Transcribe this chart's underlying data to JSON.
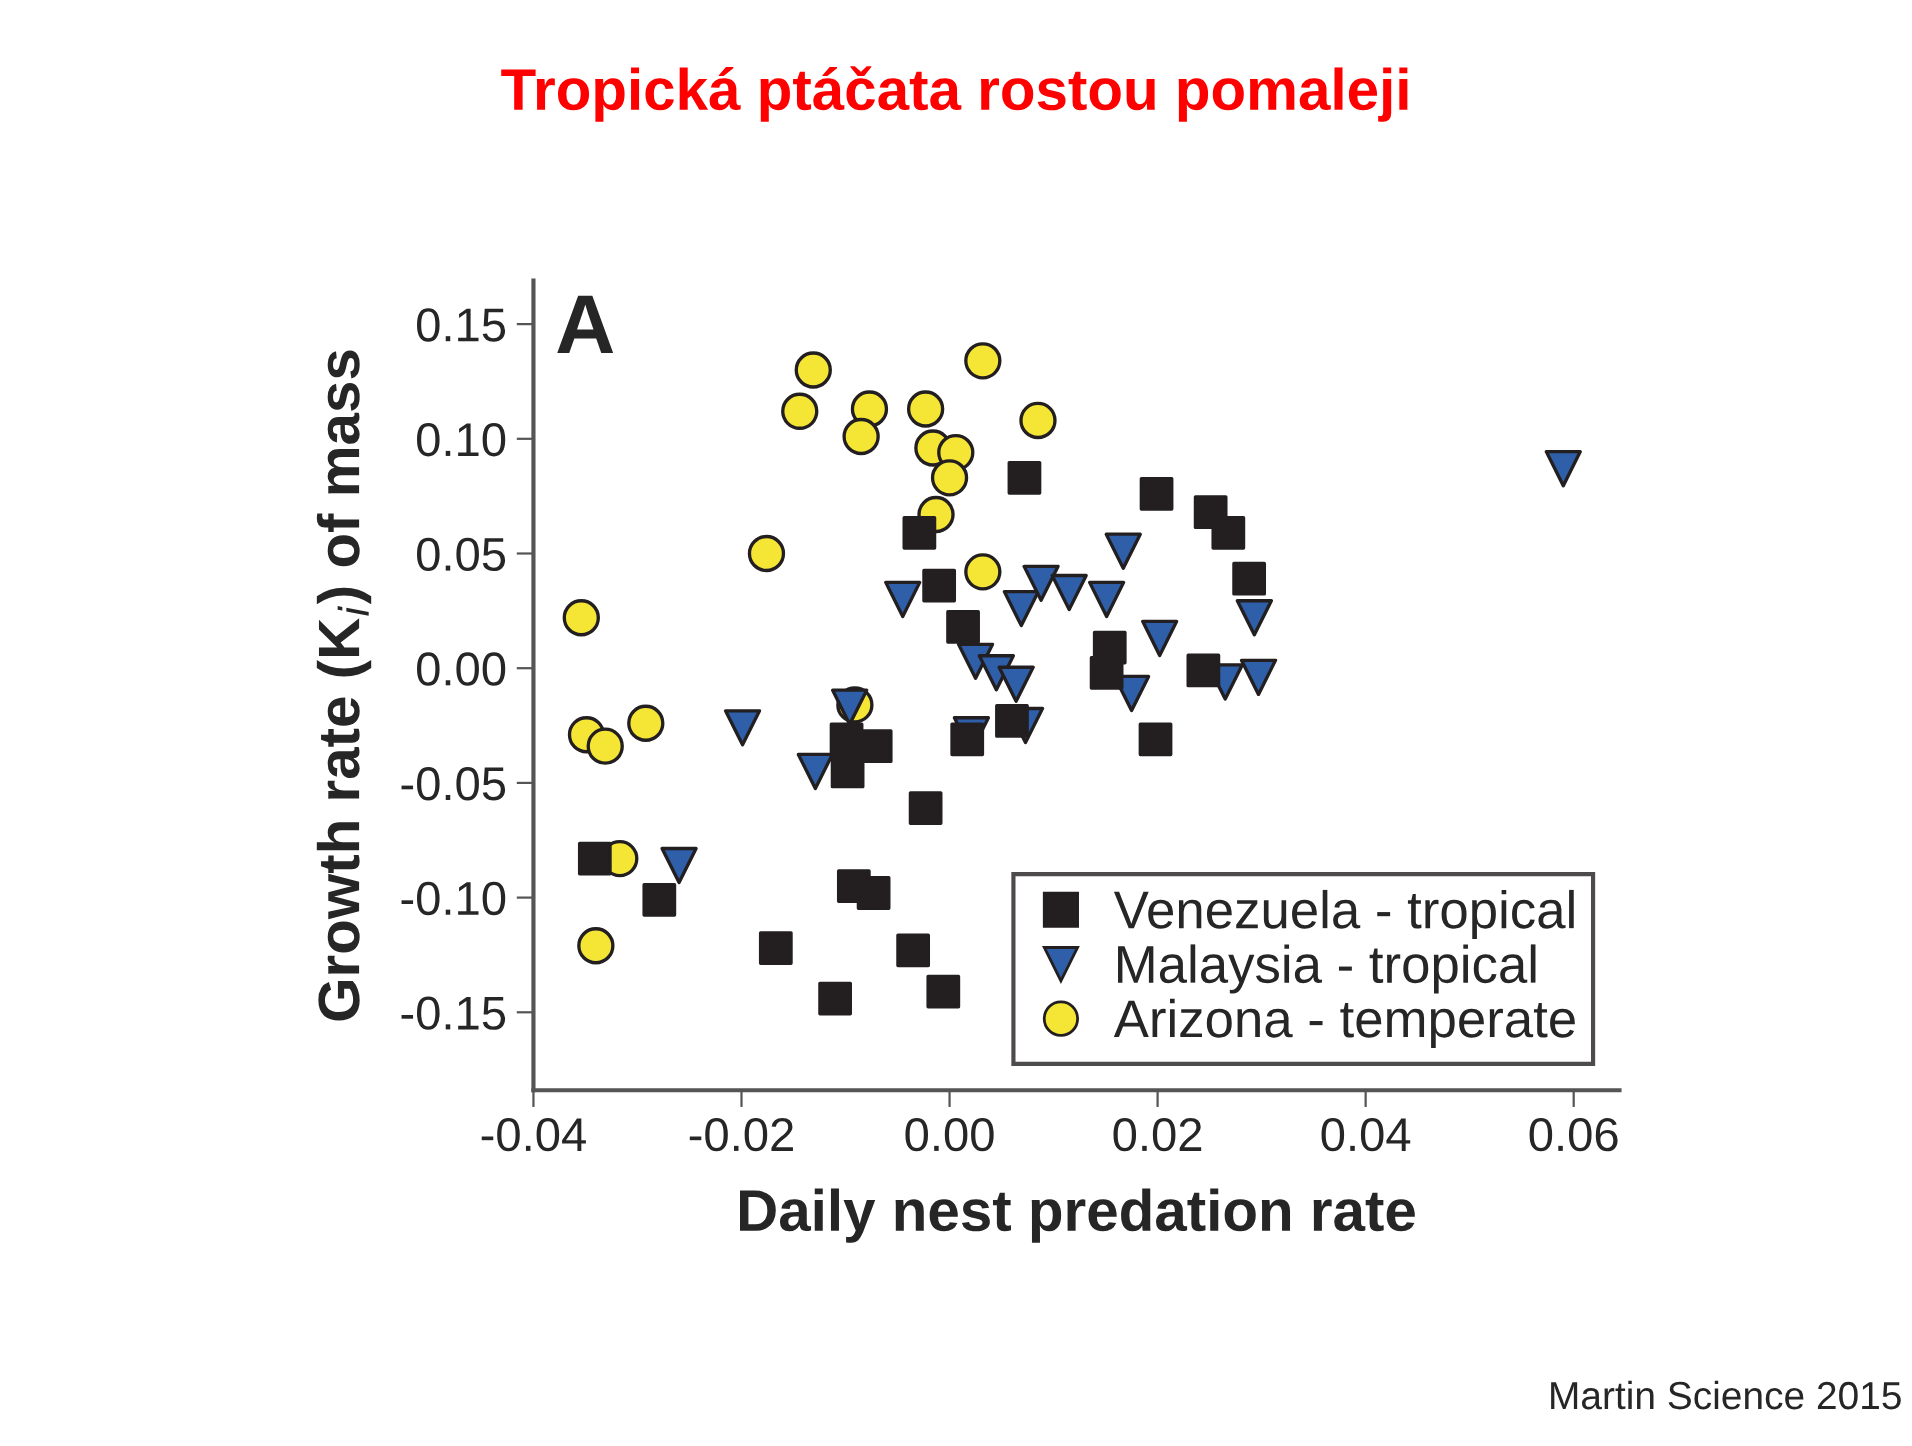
{
  "chart_data": {
    "type": "scatter",
    "title": "Tropická ptáčata rostou pomaleji",
    "xlabel": "Daily nest predation rate",
    "ylabel": "Growth rate (K$_{i}$) of mass",
    "annotations": [
      "A",
      "Martin Science 2015"
    ],
    "xlim": [
      -0.04,
      0.0644
    ],
    "ylim": [
      -0.184,
      0.169
    ],
    "xticks": [
      {
        "value": -0.04,
        "label": "-0.04"
      },
      {
        "value": -0.02,
        "label": "-0.02"
      },
      {
        "value": 0,
        "label": "0.00"
      },
      {
        "value": 0.02,
        "label": "0.02"
      },
      {
        "value": 0.04,
        "label": "0.04"
      },
      {
        "value": 0.06,
        "label": "0.06"
      }
    ],
    "yticks": [
      {
        "value": -0.15,
        "label": "-0.15"
      },
      {
        "value": -0.1,
        "label": "-0.10"
      },
      {
        "value": -0.05,
        "label": "-0.05"
      },
      {
        "value": 0,
        "label": "0.00"
      },
      {
        "value": 0.05,
        "label": "0.05"
      },
      {
        "value": 0.1,
        "label": "0.10"
      },
      {
        "value": 0.15,
        "label": "0.15"
      }
    ],
    "grid": false,
    "legend": "bottom right",
    "series": [
      {
        "name": "Venezuela - tropical",
        "color": "#231f20",
        "marker": "square",
        "x": [
          0.0072,
          0.0199,
          0.0251,
          0.0268,
          0.0288,
          -0.0029,
          -0.001,
          0.0013,
          0.0154,
          0.0151,
          0.0244,
          0.0198,
          0.006,
          0.0017,
          -0.0099,
          -0.0071,
          -0.0098,
          -0.0023,
          -0.0341,
          -0.0279,
          -0.0092,
          -0.0073,
          -0.0167,
          -0.0035,
          -0.011,
          -0.0006
        ],
        "values": [
          0.083,
          0.076,
          0.068,
          0.059,
          0.039,
          0.059,
          0.036,
          0.018,
          0.009,
          -0.002,
          -0.001,
          -0.031,
          -0.023,
          -0.031,
          -0.031,
          -0.034,
          -0.045,
          -0.061,
          -0.083,
          -0.101,
          -0.095,
          -0.098,
          -0.122,
          -0.123,
          -0.144,
          -0.141
        ]
      },
      {
        "name": "Malaysia - tropical",
        "color": "#2e5fa8",
        "marker": "triangle",
        "x": [
          -0.026,
          -0.0199,
          -0.0129,
          -0.0096,
          -0.0045,
          0.0021,
          0.0025,
          0.0045,
          0.0064,
          0.0069,
          0.0073,
          0.0088,
          0.0115,
          0.0151,
          0.0167,
          0.0202,
          0.0175,
          0.0265,
          0.0293,
          0.0297,
          0.059
        ],
        "values": [
          -0.086,
          -0.026,
          -0.045,
          -0.017,
          0.03,
          -0.029,
          0.003,
          -0.002,
          -0.007,
          0.026,
          -0.025,
          0.037,
          0.033,
          0.03,
          0.051,
          0.013,
          -0.011,
          -0.006,
          0.022,
          -0.004,
          0.087
        ]
      },
      {
        "name": "Arizona - temperate",
        "color": "#f5e535",
        "marker": "circle",
        "x": [
          -0.0131,
          0.0032,
          -0.0144,
          -0.0077,
          -0.0023,
          -0.0085,
          -0.0016,
          0.0006,
          0.0,
          0.0085,
          -0.0013,
          -0.0176,
          0.0032,
          -0.0354,
          -0.0091,
          -0.0349,
          -0.0331,
          -0.0292,
          -0.0317,
          -0.034
        ],
        "values": [
          0.13,
          0.134,
          0.112,
          0.113,
          0.113,
          0.101,
          0.096,
          0.094,
          0.083,
          0.108,
          0.067,
          0.05,
          0.042,
          0.022,
          -0.016,
          -0.029,
          -0.034,
          -0.024,
          -0.083,
          -0.121
        ]
      }
    ]
  }
}
